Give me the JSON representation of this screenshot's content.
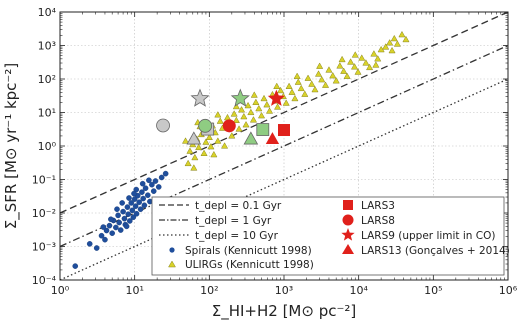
{
  "chart_data": {
    "type": "scatter",
    "title": "",
    "xlabel": "Σ_HI+H2 [M⊙ pc⁻²]",
    "ylabel": "Σ_SFR [M⊙ yr⁻¹ kpc⁻²]",
    "x_scale": "log",
    "y_scale": "log",
    "xlim": [
      1,
      1000000
    ],
    "ylim": [
      0.0001,
      10000
    ],
    "x_ticks": [
      {
        "v": 1,
        "t": "10⁰"
      },
      {
        "v": 10,
        "t": "10¹"
      },
      {
        "v": 100,
        "t": "10²"
      },
      {
        "v": 1000,
        "t": "10³"
      },
      {
        "v": 10000,
        "t": "10⁴"
      },
      {
        "v": 100000,
        "t": "10⁵"
      },
      {
        "v": 1000000,
        "t": "10⁶"
      }
    ],
    "y_ticks": [
      {
        "v": 0.0001,
        "t": "10⁻⁴"
      },
      {
        "v": 0.001,
        "t": "10⁻³"
      },
      {
        "v": 0.01,
        "t": "10⁻²"
      },
      {
        "v": 0.1,
        "t": "10⁻¹"
      },
      {
        "v": 1,
        "t": "10⁰"
      },
      {
        "v": 10,
        "t": "10¹"
      },
      {
        "v": 100,
        "t": "10²"
      },
      {
        "v": 1000,
        "t": "10³"
      },
      {
        "v": 10000,
        "t": "10⁴"
      }
    ],
    "grid": true,
    "legend_position": "bottom-right",
    "depletion_lines": [
      {
        "name": "t_depl = 0.1 Gyr",
        "gyr": 0.1,
        "style": "dashed"
      },
      {
        "name": "t_depl = 1 Gyr",
        "gyr": 1,
        "style": "dashdot"
      },
      {
        "name": "t_depl = 10 Gyr",
        "gyr": 10,
        "style": "dotted"
      }
    ],
    "series": [
      {
        "name": "Spirals (Kennicutt 1998)",
        "marker": "dot",
        "color": "#1f4e9c",
        "points": [
          [
            1.6,
            0.00026
          ],
          [
            2.5,
            0.0012
          ],
          [
            3.1,
            0.0009
          ],
          [
            3.6,
            0.0021
          ],
          [
            4.0,
            0.0016
          ],
          [
            4.2,
            0.003
          ],
          [
            4.6,
            0.0042
          ],
          [
            5.0,
            0.0025
          ],
          [
            5.2,
            0.006
          ],
          [
            5.6,
            0.0037
          ],
          [
            6.0,
            0.0085
          ],
          [
            6.2,
            0.0052
          ],
          [
            6.5,
            0.0031
          ],
          [
            7.0,
            0.011
          ],
          [
            7.3,
            0.0068
          ],
          [
            7.5,
            0.0045
          ],
          [
            8.0,
            0.015
          ],
          [
            8.2,
            0.0092
          ],
          [
            8.6,
            0.0058
          ],
          [
            9.0,
            0.02
          ],
          [
            9.3,
            0.012
          ],
          [
            9.6,
            0.0075
          ],
          [
            10.0,
            0.026
          ],
          [
            10.3,
            0.016
          ],
          [
            10.6,
            0.0095
          ],
          [
            11.0,
            0.033
          ],
          [
            11.5,
            0.021
          ],
          [
            12.0,
            0.013
          ],
          [
            12.5,
            0.042
          ],
          [
            13.0,
            0.027
          ],
          [
            13.5,
            0.017
          ],
          [
            14.0,
            0.055
          ],
          [
            15.0,
            0.034
          ],
          [
            16.0,
            0.022
          ],
          [
            17.0,
            0.07
          ],
          [
            18.0,
            0.045
          ],
          [
            19.0,
            0.09
          ],
          [
            21.0,
            0.06
          ],
          [
            23.0,
            0.115
          ],
          [
            26.0,
            0.15
          ],
          [
            6.8,
            0.02
          ],
          [
            8.4,
            0.028
          ],
          [
            5.8,
            0.013
          ],
          [
            10.5,
            0.05
          ],
          [
            12.8,
            0.075
          ],
          [
            4.8,
            0.0065
          ],
          [
            7.8,
            0.004
          ],
          [
            15.5,
            0.095
          ],
          [
            3.8,
            0.0038
          ],
          [
            9.8,
            0.038
          ]
        ]
      },
      {
        "name": "ULIRGs (Kennicutt 1998)",
        "marker": "triangle",
        "color": "#d8d22a",
        "points": [
          [
            52,
            0.3
          ],
          [
            55,
            0.7
          ],
          [
            60,
            1.1
          ],
          [
            64,
            0.45
          ],
          [
            68,
            1.6
          ],
          [
            72,
            0.9
          ],
          [
            78,
            2.2
          ],
          [
            85,
            0.6
          ],
          [
            90,
            1.3
          ],
          [
            95,
            3.0
          ],
          [
            100,
            1.8
          ],
          [
            105,
            0.95
          ],
          [
            110,
            4.0
          ],
          [
            120,
            2.5
          ],
          [
            130,
            1.4
          ],
          [
            140,
            5.5
          ],
          [
            150,
            3.4
          ],
          [
            160,
            1.0
          ],
          [
            175,
            7.0
          ],
          [
            190,
            4.5
          ],
          [
            200,
            2.0
          ],
          [
            215,
            9.0
          ],
          [
            230,
            5.8
          ],
          [
            250,
            3.2
          ],
          [
            270,
            12.0
          ],
          [
            290,
            7.5
          ],
          [
            310,
            4.3
          ],
          [
            330,
            16.0
          ],
          [
            360,
            10.0
          ],
          [
            390,
            6.0
          ],
          [
            420,
            20.0
          ],
          [
            460,
            13.0
          ],
          [
            500,
            8.0
          ],
          [
            540,
            26.0
          ],
          [
            590,
            17.0
          ],
          [
            640,
            11.0
          ],
          [
            700,
            34.0
          ],
          [
            760,
            22.0
          ],
          [
            820,
            14.5
          ],
          [
            900,
            45.0
          ],
          [
            980,
            30.0
          ],
          [
            1070,
            19.0
          ],
          [
            1170,
            60.0
          ],
          [
            1280,
            40.0
          ],
          [
            1400,
            26.0
          ],
          [
            1550,
            80.0
          ],
          [
            1700,
            52.0
          ],
          [
            1900,
            35.0
          ],
          [
            2100,
            105.0
          ],
          [
            2350,
            70.0
          ],
          [
            2600,
            48.0
          ],
          [
            2900,
            140.0
          ],
          [
            3200,
            95.0
          ],
          [
            3600,
            65.0
          ],
          [
            4000,
            185.0
          ],
          [
            4500,
            125.0
          ],
          [
            5000,
            88.0
          ],
          [
            5600,
            245.0
          ],
          [
            6300,
            170.0
          ],
          [
            7000,
            120.0
          ],
          [
            7800,
            320.0
          ],
          [
            8800,
            230.0
          ],
          [
            9800,
            160.0
          ],
          [
            11000,
            420.0
          ],
          [
            12500,
            300.0
          ],
          [
            14000,
            220.0
          ],
          [
            16000,
            560.0
          ],
          [
            18000,
            400.0
          ],
          [
            20000,
            750.0
          ],
          [
            23000,
            900.0
          ],
          [
            26000,
            1200.0
          ],
          [
            30000,
            1600.0
          ],
          [
            33000,
            1100.0
          ],
          [
            38000,
            2100.0
          ],
          [
            43000,
            1500.0
          ],
          [
            28000,
            700.0
          ],
          [
            17000,
            260.0
          ],
          [
            9000,
            520.0
          ],
          [
            6000,
            380.0
          ],
          [
            3000,
            240.0
          ],
          [
            1500,
            120.0
          ],
          [
            800,
            60.0
          ],
          [
            400,
            33.0
          ],
          [
            230,
            15.0
          ],
          [
            130,
            8.5
          ],
          [
            75,
            3.8
          ],
          [
            62,
            0.22
          ],
          [
            115,
            0.55
          ],
          [
            48,
            1.4
          ],
          [
            70,
            5.0
          ]
        ]
      },
      {
        "name": "LARS3",
        "marker": "square",
        "color": "#e0201b",
        "points": [
          [
            1000,
            3.0
          ]
        ],
        "extra": [
          {
            "x": 95,
            "y": 3.2,
            "color": "#c8c8c8"
          },
          {
            "x": 520,
            "y": 3.1,
            "color": "#8fcc82"
          }
        ]
      },
      {
        "name": "LARS8",
        "marker": "circle",
        "color": "#e0201b",
        "points": [
          [
            185,
            4.0
          ]
        ],
        "extra": [
          {
            "x": 24,
            "y": 4.1,
            "color": "#c8c8c8"
          },
          {
            "x": 88,
            "y": 4.0,
            "color": "#8fcc82"
          }
        ]
      },
      {
        "name": "LARS9 (upper limit in CO)",
        "marker": "star",
        "color": "#e0201b",
        "points": [
          [
            790,
            26.0
          ]
        ],
        "extra": [
          {
            "x": 75,
            "y": 26.0,
            "color": "#c8c8c8"
          },
          {
            "x": 260,
            "y": 26.0,
            "color": "#8fcc82"
          }
        ]
      },
      {
        "name": "LARS13 (Gonçalves + 2014)",
        "marker": "triangle",
        "color": "#e0201b",
        "points": [
          [
            700,
            1.6
          ]
        ],
        "extra": [
          {
            "x": 62,
            "y": 1.6,
            "color": "#c8c8c8"
          },
          {
            "x": 360,
            "y": 1.6,
            "color": "#8fcc82"
          }
        ]
      }
    ]
  },
  "legend": {
    "line1": "t_depl = 0.1 Gyr",
    "line2": "t_depl = 1 Gyr",
    "line3": "t_depl = 10 Gyr",
    "spirals": "Spirals (Kennicutt 1998)",
    "ulirgs": "ULIRGs (Kennicutt 1998)",
    "lars3": "LARS3",
    "lars8": "LARS8",
    "lars9": "LARS9 (upper limit in CO)",
    "lars13": "LARS13 (Gonçalves + 2014)"
  }
}
